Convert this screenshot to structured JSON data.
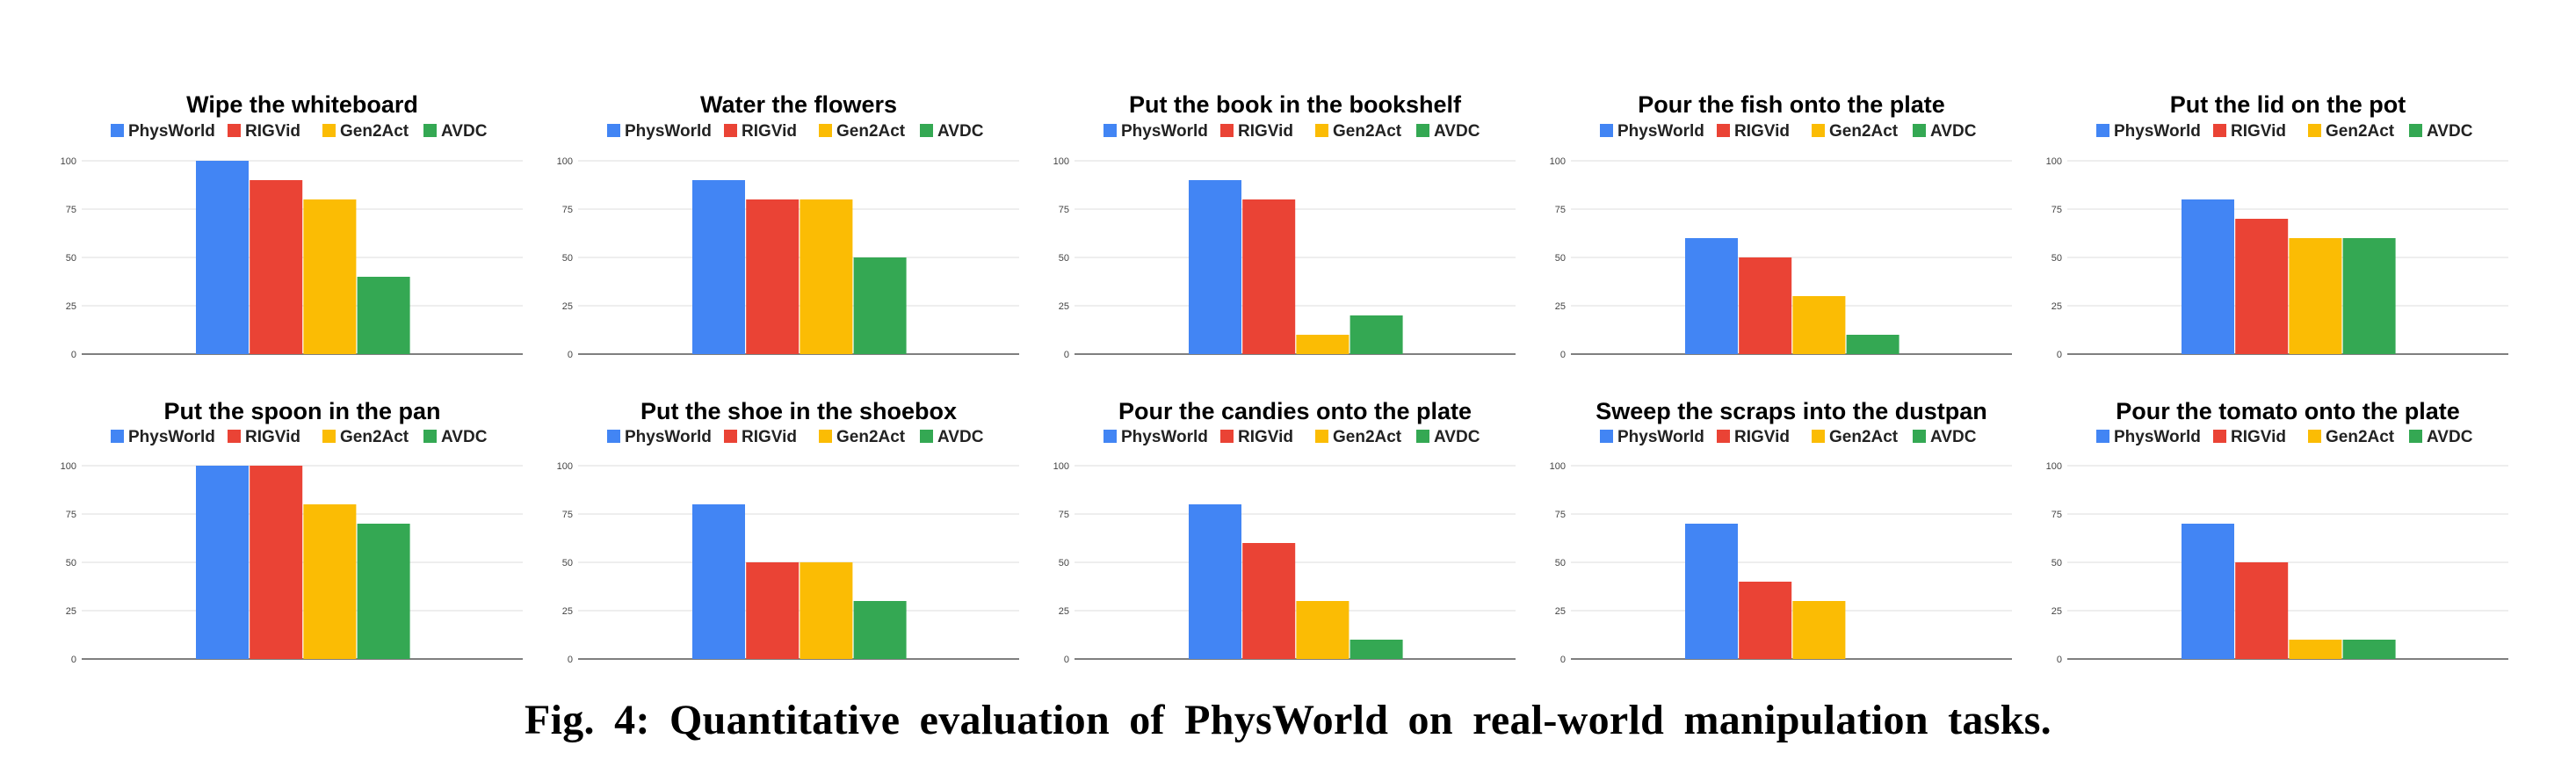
{
  "caption": "Fig. 4: Quantitative evaluation of PhysWorld on real-world manipulation tasks.",
  "series_colors": {
    "PhysWorld": "#4285F4",
    "RIGVid": "#EA4335",
    "Gen2Act": "#FBBC04",
    "AVDC": "#34A853"
  },
  "chart_data": [
    {
      "type": "bar",
      "title": "Wipe the whiteboard",
      "ylim": [
        0,
        100
      ],
      "yticks": [
        "0",
        "25",
        "50",
        "75",
        "100"
      ],
      "legend": [
        "PhysWorld",
        "RIGVid",
        "Gen2Act",
        "AVDC"
      ],
      "legend_position": "top",
      "series": [
        {
          "name": "PhysWorld",
          "values": [
            100
          ]
        },
        {
          "name": "RIGVid",
          "values": [
            90
          ]
        },
        {
          "name": "Gen2Act",
          "values": [
            80
          ]
        },
        {
          "name": "AVDC",
          "values": [
            40
          ]
        }
      ]
    },
    {
      "type": "bar",
      "title": "Water the flowers",
      "ylim": [
        0,
        100
      ],
      "yticks": [
        "0",
        "25",
        "50",
        "75",
        "100"
      ],
      "legend": [
        "PhysWorld",
        "RIGVid",
        "Gen2Act",
        "AVDC"
      ],
      "legend_position": "top",
      "series": [
        {
          "name": "PhysWorld",
          "values": [
            90
          ]
        },
        {
          "name": "RIGVid",
          "values": [
            80
          ]
        },
        {
          "name": "Gen2Act",
          "values": [
            80
          ]
        },
        {
          "name": "AVDC",
          "values": [
            50
          ]
        }
      ]
    },
    {
      "type": "bar",
      "title": "Put the book in the bookshelf",
      "ylim": [
        0,
        100
      ],
      "yticks": [
        "0",
        "25",
        "50",
        "75",
        "100"
      ],
      "legend": [
        "PhysWorld",
        "RIGVid",
        "Gen2Act",
        "AVDC"
      ],
      "legend_position": "top",
      "series": [
        {
          "name": "PhysWorld",
          "values": [
            90
          ]
        },
        {
          "name": "RIGVid",
          "values": [
            80
          ]
        },
        {
          "name": "Gen2Act",
          "values": [
            10
          ]
        },
        {
          "name": "AVDC",
          "values": [
            20
          ]
        }
      ]
    },
    {
      "type": "bar",
      "title": "Pour the fish onto the plate",
      "ylim": [
        0,
        100
      ],
      "yticks": [
        "0",
        "25",
        "50",
        "75",
        "100"
      ],
      "legend": [
        "PhysWorld",
        "RIGVid",
        "Gen2Act",
        "AVDC"
      ],
      "legend_position": "top",
      "series": [
        {
          "name": "PhysWorld",
          "values": [
            60
          ]
        },
        {
          "name": "RIGVid",
          "values": [
            50
          ]
        },
        {
          "name": "Gen2Act",
          "values": [
            30
          ]
        },
        {
          "name": "AVDC",
          "values": [
            10
          ]
        }
      ]
    },
    {
      "type": "bar",
      "title": "Put the lid on the pot",
      "ylim": [
        0,
        100
      ],
      "yticks": [
        "0",
        "25",
        "50",
        "75",
        "100"
      ],
      "legend": [
        "PhysWorld",
        "RIGVid",
        "Gen2Act",
        "AVDC"
      ],
      "legend_position": "top",
      "series": [
        {
          "name": "PhysWorld",
          "values": [
            80
          ]
        },
        {
          "name": "RIGVid",
          "values": [
            70
          ]
        },
        {
          "name": "Gen2Act",
          "values": [
            60
          ]
        },
        {
          "name": "AVDC",
          "values": [
            60
          ]
        }
      ]
    },
    {
      "type": "bar",
      "title": "Put the spoon in the pan",
      "ylim": [
        0,
        100
      ],
      "yticks": [
        "0",
        "25",
        "50",
        "75",
        "100"
      ],
      "legend": [
        "PhysWorld",
        "RIGVid",
        "Gen2Act",
        "AVDC"
      ],
      "legend_position": "top",
      "series": [
        {
          "name": "PhysWorld",
          "values": [
            100
          ]
        },
        {
          "name": "RIGVid",
          "values": [
            100
          ]
        },
        {
          "name": "Gen2Act",
          "values": [
            80
          ]
        },
        {
          "name": "AVDC",
          "values": [
            70
          ]
        }
      ]
    },
    {
      "type": "bar",
      "title": "Put the shoe in the shoebox",
      "ylim": [
        0,
        100
      ],
      "yticks": [
        "0",
        "25",
        "50",
        "75",
        "100"
      ],
      "legend": [
        "PhysWorld",
        "RIGVid",
        "Gen2Act",
        "AVDC"
      ],
      "legend_position": "top",
      "series": [
        {
          "name": "PhysWorld",
          "values": [
            80
          ]
        },
        {
          "name": "RIGVid",
          "values": [
            50
          ]
        },
        {
          "name": "Gen2Act",
          "values": [
            50
          ]
        },
        {
          "name": "AVDC",
          "values": [
            30
          ]
        }
      ]
    },
    {
      "type": "bar",
      "title": "Pour the candies onto the plate",
      "ylim": [
        0,
        100
      ],
      "yticks": [
        "0",
        "25",
        "50",
        "75",
        "100"
      ],
      "legend": [
        "PhysWorld",
        "RIGVid",
        "Gen2Act",
        "AVDC"
      ],
      "legend_position": "top",
      "series": [
        {
          "name": "PhysWorld",
          "values": [
            80
          ]
        },
        {
          "name": "RIGVid",
          "values": [
            60
          ]
        },
        {
          "name": "Gen2Act",
          "values": [
            30
          ]
        },
        {
          "name": "AVDC",
          "values": [
            10
          ]
        }
      ]
    },
    {
      "type": "bar",
      "title": "Sweep the scraps into the dustpan",
      "ylim": [
        0,
        100
      ],
      "yticks": [
        "0",
        "25",
        "50",
        "75",
        "100"
      ],
      "legend": [
        "PhysWorld",
        "RIGVid",
        "Gen2Act",
        "AVDC"
      ],
      "legend_position": "top",
      "series": [
        {
          "name": "PhysWorld",
          "values": [
            70
          ]
        },
        {
          "name": "RIGVid",
          "values": [
            40
          ]
        },
        {
          "name": "Gen2Act",
          "values": [
            30
          ]
        },
        {
          "name": "AVDC",
          "values": [
            0
          ]
        }
      ]
    },
    {
      "type": "bar",
      "title": "Pour the tomato onto the plate",
      "ylim": [
        0,
        100
      ],
      "yticks": [
        "0",
        "25",
        "50",
        "75",
        "100"
      ],
      "legend": [
        "PhysWorld",
        "RIGVid",
        "Gen2Act",
        "AVDC"
      ],
      "legend_position": "top",
      "series": [
        {
          "name": "PhysWorld",
          "values": [
            70
          ]
        },
        {
          "name": "RIGVid",
          "values": [
            50
          ]
        },
        {
          "name": "Gen2Act",
          "values": [
            10
          ]
        },
        {
          "name": "AVDC",
          "values": [
            10
          ]
        }
      ]
    }
  ]
}
